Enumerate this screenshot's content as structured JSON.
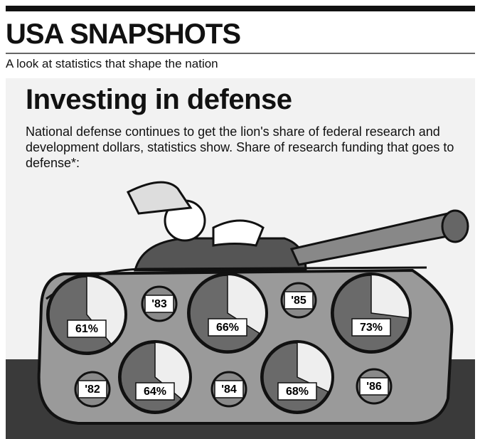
{
  "header": {
    "title": "USA SNAPSHOTS",
    "subtitle": "A look at statistics that shape the nation"
  },
  "chart_data": {
    "type": "pie",
    "title": "Investing in defense",
    "subtitle": "National defense continues to get the lion's share of federal research and development dollars, statistics show. Share of research funding that goes to defense*:",
    "categories": [
      "'82",
      "'83",
      "'84",
      "'85",
      "'86"
    ],
    "values": [
      61,
      64,
      66,
      68,
      73
    ],
    "value_labels": [
      "61%",
      "64%",
      "66%",
      "68%",
      "73%"
    ],
    "color": "#6a6a6a"
  }
}
